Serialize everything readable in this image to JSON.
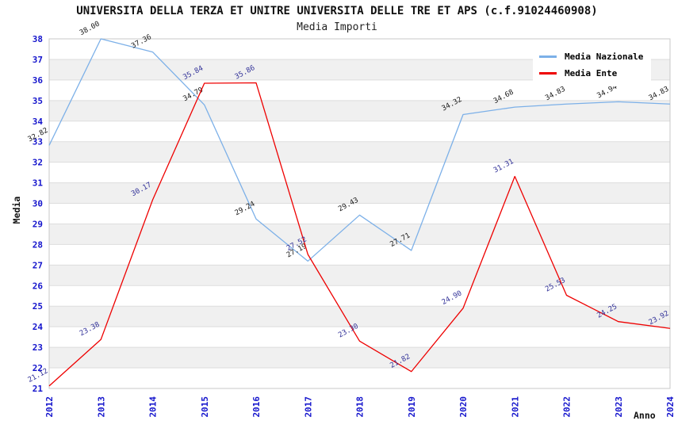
{
  "chart_data": {
    "type": "line",
    "title": "UNIVERSITA DELLA TERZA ET UNITRE UNIVERSITA DELLE TRE ET APS (c.f.91024460908)",
    "subtitle": "Media Importi",
    "xlabel": "Anno",
    "ylabel": "Media",
    "x": [
      2012,
      2013,
      2014,
      2015,
      2016,
      2017,
      2018,
      2019,
      2020,
      2021,
      2022,
      2023,
      2024
    ],
    "ylim": [
      21,
      38
    ],
    "ytick_step": 1,
    "grid": "horizontal-gridlines-with-alternating-bands",
    "legend_position": "top-right",
    "series": [
      {
        "name": "Media Nazionale",
        "color": "#7cb0e8",
        "label_color": "#1a1a1a",
        "values": [
          32.82,
          38.0,
          37.36,
          34.79,
          29.24,
          27.19,
          29.43,
          27.71,
          34.32,
          34.68,
          34.83,
          34.94,
          34.83
        ]
      },
      {
        "name": "Media Ente",
        "color": "#ee0000",
        "label_color": "#333399",
        "values": [
          21.12,
          23.38,
          30.17,
          35.84,
          35.86,
          27.52,
          23.3,
          21.82,
          24.9,
          31.31,
          25.53,
          24.25,
          23.92
        ]
      }
    ],
    "style": {
      "band_fill": "#f0f0f0",
      "grid_color": "#dddddd",
      "border_color": "#c8c8c8",
      "tick_color": "#1414cc",
      "background": "#ffffff"
    }
  }
}
